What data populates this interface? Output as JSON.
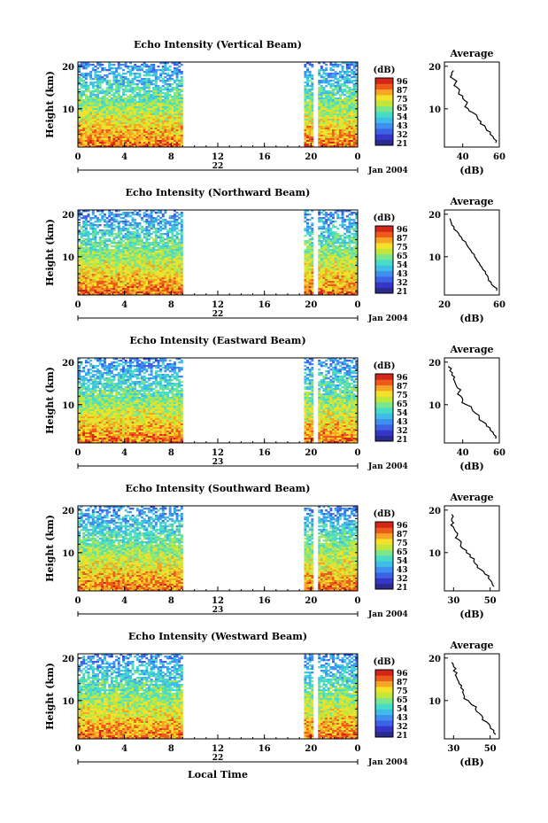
{
  "colors": {
    "scale": [
      "#2a2a8f",
      "#3535c8",
      "#3d62e6",
      "#3f8ff0",
      "#3fbde8",
      "#46dcc8",
      "#7ce68c",
      "#c2e63c",
      "#f4e22a",
      "#f6a524",
      "#ee5a1c",
      "#d42618"
    ]
  },
  "colorbar": {
    "unit": "(dB)",
    "labels": [
      "96",
      "87",
      "75",
      "65",
      "54",
      "43",
      "32",
      "21"
    ]
  },
  "average_panel": {
    "title": "Average",
    "xlabel": "(dB)"
  },
  "xaxis_label": "Local Time",
  "chart_data": [
    {
      "type": "heatmap",
      "title": "Echo Intensity (Vertical Beam)",
      "ylabel": "Height (km)",
      "y_ticks": [
        "20",
        "10"
      ],
      "x_ticks": [
        "0",
        "4",
        "8",
        "12",
        "16",
        "20",
        "0"
      ],
      "day_label": "22",
      "month_label": "Jan 2004",
      "data_segments_hours": [
        [
          0,
          9
        ],
        [
          19.4,
          20.2
        ],
        [
          20.6,
          24
        ]
      ],
      "color_range": [
        21,
        96
      ],
      "avg_profile": {
        "x_ticks": [
          "40",
          "60"
        ],
        "xlim": [
          30,
          60
        ],
        "height_km": [
          2,
          3,
          4,
          5,
          6,
          7,
          8,
          9,
          10,
          11,
          12,
          13,
          14,
          15,
          16,
          17,
          18,
          19
        ],
        "db": [
          58,
          57,
          55,
          53,
          52,
          50,
          48,
          46,
          43,
          42,
          41,
          40,
          38,
          37,
          36,
          35,
          34,
          35
        ]
      }
    },
    {
      "type": "heatmap",
      "title": "Echo Intensity (Northward Beam)",
      "ylabel": "Height (km)",
      "y_ticks": [
        "20",
        "10"
      ],
      "x_ticks": [
        "0",
        "4",
        "8",
        "12",
        "16",
        "20",
        "0"
      ],
      "day_label": "22",
      "month_label": "Jan 2004",
      "data_segments_hours": [
        [
          0,
          9
        ],
        [
          19.4,
          20.2
        ],
        [
          20.6,
          24
        ]
      ],
      "color_range": [
        21,
        96
      ],
      "avg_profile": {
        "x_ticks": [
          "20",
          "60"
        ],
        "xlim": [
          20,
          60
        ],
        "height_km": [
          2,
          3,
          4,
          5,
          6,
          7,
          8,
          9,
          10,
          11,
          12,
          13,
          14,
          15,
          16,
          17,
          18,
          19
        ],
        "db": [
          58,
          56,
          54,
          52,
          50,
          48,
          46,
          44,
          42,
          40,
          38,
          36,
          33,
          31,
          29,
          27,
          25,
          24
        ]
      }
    },
    {
      "type": "heatmap",
      "title": "Echo Intensity (Eastward Beam)",
      "ylabel": "Height (km)",
      "y_ticks": [
        "20",
        "10"
      ],
      "x_ticks": [
        "0",
        "4",
        "8",
        "12",
        "16",
        "20",
        "0"
      ],
      "day_label": "23",
      "month_label": "Jan 2004",
      "data_segments_hours": [
        [
          0,
          9
        ],
        [
          19.4,
          20.2
        ],
        [
          20.6,
          24
        ]
      ],
      "color_range": [
        21,
        96
      ],
      "avg_profile": {
        "x_ticks": [
          "40",
          "60"
        ],
        "xlim": [
          30,
          60
        ],
        "height_km": [
          2,
          3,
          4,
          5,
          6,
          7,
          8,
          9,
          10,
          11,
          12,
          13,
          14,
          15,
          16,
          17,
          18,
          19
        ],
        "db": [
          58,
          57,
          55,
          53,
          51,
          49,
          47,
          45,
          42,
          40,
          39,
          38,
          37,
          36,
          35,
          34,
          33,
          32
        ]
      }
    },
    {
      "type": "heatmap",
      "title": "Echo Intensity (Southward Beam)",
      "ylabel": "Height (km)",
      "y_ticks": [
        "20",
        "10"
      ],
      "x_ticks": [
        "0",
        "4",
        "8",
        "12",
        "16",
        "20",
        "0"
      ],
      "day_label": "23",
      "month_label": "Jan 2004",
      "data_segments_hours": [
        [
          0,
          9
        ],
        [
          19.4,
          20.2
        ],
        [
          20.6,
          24
        ]
      ],
      "color_range": [
        21,
        96
      ],
      "avg_profile": {
        "x_ticks": [
          "30",
          "50"
        ],
        "xlim": [
          25,
          55
        ],
        "height_km": [
          2,
          3,
          4,
          5,
          6,
          7,
          8,
          9,
          10,
          11,
          12,
          13,
          14,
          15,
          16,
          17,
          18,
          19
        ],
        "db": [
          52,
          51,
          49,
          47,
          45,
          43,
          41,
          39,
          37,
          35,
          34,
          33,
          32,
          31,
          30,
          30,
          29,
          29
        ]
      }
    },
    {
      "type": "heatmap",
      "title": "Echo Intensity (Westward Beam)",
      "ylabel": "Height (km)",
      "y_ticks": [
        "20",
        "10"
      ],
      "x_ticks": [
        "0",
        "4",
        "8",
        "12",
        "16",
        "20",
        "0"
      ],
      "day_label": "22",
      "month_label": "Jan 2004",
      "data_segments_hours": [
        [
          0,
          9
        ],
        [
          19.4,
          20.2
        ],
        [
          20.6,
          24
        ]
      ],
      "color_range": [
        21,
        96
      ],
      "avg_profile": {
        "x_ticks": [
          "30",
          "50"
        ],
        "xlim": [
          25,
          55
        ],
        "height_km": [
          2,
          3,
          4,
          5,
          6,
          7,
          8,
          9,
          10,
          11,
          12,
          13,
          14,
          15,
          16,
          17,
          18,
          19
        ],
        "db": [
          53,
          52,
          50,
          48,
          46,
          44,
          42,
          40,
          38,
          36,
          35,
          34,
          33,
          32,
          31,
          30,
          30,
          29
        ]
      }
    }
  ]
}
